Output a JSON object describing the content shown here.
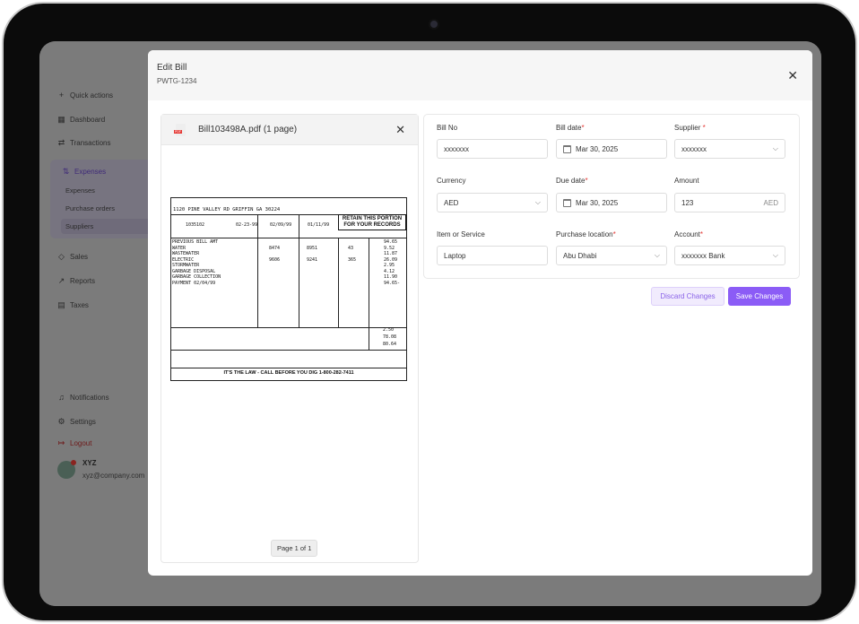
{
  "sidebar": {
    "items": [
      {
        "label": "Quick actions",
        "icon": "plus-icon"
      },
      {
        "label": "Dashboard",
        "icon": "grid-icon"
      },
      {
        "label": "Transactions",
        "icon": "arrows-icon"
      },
      {
        "label": "Expenses",
        "icon": "sort-icon"
      },
      {
        "label": "Sales",
        "icon": "tag-icon"
      },
      {
        "label": "Reports",
        "icon": "chart-icon"
      },
      {
        "label": "Taxes",
        "icon": "document-icon"
      },
      {
        "label": "Notifications",
        "icon": "bell-icon"
      },
      {
        "label": "Settings",
        "icon": "gear-icon"
      },
      {
        "label": "Logout",
        "icon": "logout-icon"
      }
    ],
    "sub_items": [
      "Expenses",
      "Purchase orders",
      "Suppliers"
    ],
    "user": {
      "name": "XYZ",
      "email": "xyz@company.com"
    }
  },
  "modal": {
    "title": "Edit Bill",
    "subtitle": "PWTG-1234",
    "document": {
      "name": "Bill103498A.pdf (1 page)",
      "pager": "Page 1 of 1",
      "bill": {
        "address": "1120 PINE VALLEY RD GRIFFIN GA 30224",
        "account_no": "1035102",
        "payment_due": "02-23-99",
        "present_date": "02/09/99",
        "previous_date": "01/11/99",
        "retain": "RETAIN THIS PORTION FOR YOUR RECORDS",
        "lines": [
          [
            "PREVIOUS BILL AMT",
            "",
            "",
            "",
            "94.65"
          ],
          [
            "WATER",
            "8474",
            "8951",
            "43",
            "9.52"
          ],
          [
            "WASTEWATER",
            "",
            "",
            "",
            "11.87"
          ],
          [
            "ELECTRIC",
            "9606",
            "9241",
            "365",
            "26.09"
          ],
          [
            "STORMWATER",
            "",
            "",
            "",
            "2.95"
          ],
          [
            "GARBAGE DISPOSAL",
            "",
            "",
            "",
            "4.12"
          ],
          [
            "GARBAGE COLLECTION",
            "",
            "",
            "",
            "11.90"
          ],
          [
            "PAYMENT 02/04/99",
            "",
            "",
            "",
            "94.65-"
          ]
        ],
        "totals": [
          "2.50",
          "78.08",
          "80.64"
        ],
        "footer": "IT'S THE LAW - CALL BEFORE YOU DIG 1-800-282-7411"
      }
    },
    "form": {
      "bill_no": {
        "label": "Bill No",
        "value": "xxxxxxx"
      },
      "bill_date": {
        "label": "Bill date",
        "value": "Mar 30, 2025"
      },
      "supplier": {
        "label": "Supplier",
        "value": "xxxxxxx"
      },
      "currency": {
        "label": "Currency",
        "value": "AED"
      },
      "due_date": {
        "label": "Due date",
        "value": "Mar 30, 2025"
      },
      "amount": {
        "label": "Amount",
        "value": "123",
        "unit": "AED"
      },
      "item": {
        "label": "Item or Service",
        "value": "Laptop"
      },
      "location": {
        "label": "Purchase location",
        "value": "Abu Dhabi"
      },
      "account": {
        "label": "Account",
        "value": "xxxxxxx Bank"
      }
    },
    "buttons": {
      "discard": "Discard Changes",
      "save": "Save Changes"
    }
  },
  "colors": {
    "accent": "#8b5cf6",
    "required": "#e53935"
  }
}
